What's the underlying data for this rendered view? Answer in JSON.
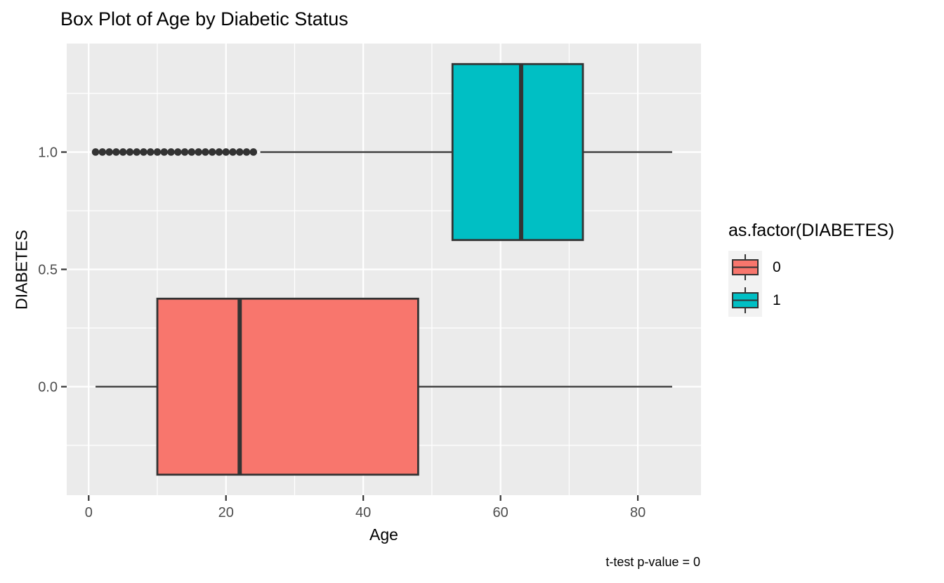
{
  "chart_data": {
    "type": "boxplot",
    "orientation": "horizontal",
    "title": "Box Plot of Age by Diabetic Status",
    "xlabel": "Age",
    "ylabel": "DIABETES",
    "caption": "t-test p-value = 0",
    "xlim": [
      -3.2,
      89.2
    ],
    "ylim": [
      -0.4625,
      1.4625
    ],
    "x_ticks": [
      {
        "label": "0",
        "value": 0
      },
      {
        "label": "20",
        "value": 20
      },
      {
        "label": "40",
        "value": 40
      },
      {
        "label": "60",
        "value": 60
      },
      {
        "label": "80",
        "value": 80
      }
    ],
    "x_minor": [
      10,
      30,
      50,
      70
    ],
    "y_ticks": [
      {
        "label": "0.0",
        "value": 0
      },
      {
        "label": "0.5",
        "value": 0.5
      },
      {
        "label": "1.0",
        "value": 1
      }
    ],
    "y_minor": [
      -0.25,
      0.25,
      0.75,
      1.25
    ],
    "grid": true,
    "series": [
      {
        "name": "0",
        "y": 0,
        "color": "#F8766D",
        "whisker_low": 1,
        "q1": 10,
        "median": 22,
        "q3": 48,
        "whisker_high": 85,
        "outliers": []
      },
      {
        "name": "1",
        "y": 1,
        "color": "#00BFC4",
        "whisker_low": 25,
        "q1": 53,
        "median": 63,
        "q3": 72,
        "whisker_high": 85,
        "outliers": [
          1,
          2,
          3,
          4,
          5,
          6,
          7,
          8,
          9,
          10,
          11,
          12,
          13,
          14,
          15,
          16,
          17,
          18,
          19,
          20,
          21,
          22,
          23,
          24
        ]
      }
    ],
    "box_half_width": 0.375,
    "legend": {
      "title": "as.factor(DIABETES)",
      "position": "right",
      "entries": [
        {
          "label": "0",
          "color": "#F8766D"
        },
        {
          "label": "1",
          "color": "#00BFC4"
        }
      ]
    },
    "colors": {
      "panel_bg": "#EBEBEB",
      "gridline": "#FFFFFF",
      "box_border": "#333333",
      "outlier": "#333333",
      "tick_mark": "#333333",
      "tick_label": "#4D4D4D",
      "legend_key_bg": "#F2F2F2"
    }
  }
}
